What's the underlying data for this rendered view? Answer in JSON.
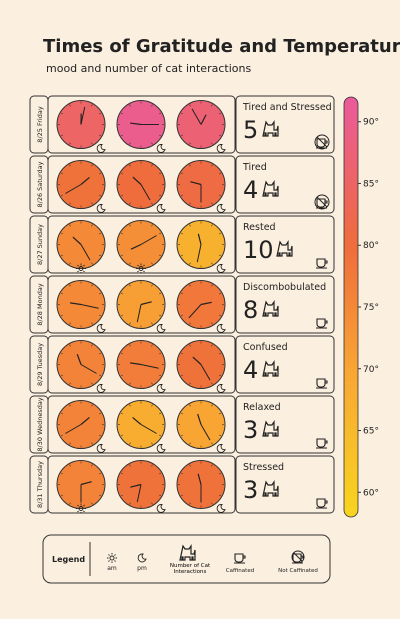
{
  "title": "Times of Gratitude and Temperature",
  "subtitle": "mood and number of cat interactions",
  "rows": [
    {
      "date": "8/25 Friday",
      "mood": "Tired and Stressed",
      "cats": 5,
      "caffeinated": false,
      "clocks": [
        {
          "hour": 12,
          "minute": 2,
          "period": "pm",
          "temp": 85
        },
        {
          "hour": 9,
          "minute": 15,
          "period": "pm",
          "temp": 90
        },
        {
          "hour": 12,
          "minute": 55,
          "period": "pm",
          "temp": 87
        }
      ]
    },
    {
      "date": "8/26 Saturday",
      "mood": "Tired",
      "cats": 4,
      "caffeinated": false,
      "clocks": [
        {
          "hour": 1,
          "minute": 40,
          "period": "pm",
          "temp": 79
        },
        {
          "hour": 10,
          "minute": 25,
          "period": "pm",
          "temp": 80
        },
        {
          "hour": 9,
          "minute": 30,
          "period": "pm",
          "temp": 81
        }
      ]
    },
    {
      "date": "8/27 Sunday",
      "mood": "Rested",
      "cats": 10,
      "caffeinated": true,
      "clocks": [
        {
          "hour": 10,
          "minute": 25,
          "period": "am",
          "temp": 75
        },
        {
          "hour": 8,
          "minute": 10,
          "period": "am",
          "temp": 74
        },
        {
          "hour": 11,
          "minute": 32,
          "period": "pm",
          "temp": 67
        }
      ]
    },
    {
      "date": "8/28 Monday",
      "mood": "Discombobulated",
      "cats": 8,
      "caffeinated": true,
      "clocks": [
        {
          "hour": 9,
          "minute": 17,
          "period": "pm",
          "temp": 75
        },
        {
          "hour": 2,
          "minute": 32,
          "period": "pm",
          "temp": 71
        },
        {
          "hour": 2,
          "minute": 37,
          "period": "pm",
          "temp": 78
        }
      ]
    },
    {
      "date": "8/29 Tuesday",
      "mood": "Confused",
      "cats": 4,
      "caffeinated": true,
      "clocks": [
        {
          "hour": 11,
          "minute": 20,
          "period": "pm",
          "temp": 76
        },
        {
          "hour": 9,
          "minute": 17,
          "period": "pm",
          "temp": 77
        },
        {
          "hour": 10,
          "minute": 25,
          "period": "pm",
          "temp": 79
        }
      ]
    },
    {
      "date": "8/30 Wednesday",
      "mood": "Relaxed",
      "cats": 3,
      "caffeinated": true,
      "clocks": [
        {
          "hour": 1,
          "minute": 40,
          "period": "pm",
          "temp": 76
        },
        {
          "hour": 10,
          "minute": 20,
          "period": "pm",
          "temp": 68
        },
        {
          "hour": 11,
          "minute": 25,
          "period": "pm",
          "temp": 70
        }
      ]
    },
    {
      "date": "8/31 Thursday",
      "mood": "Stressed",
      "cats": 3,
      "caffeinated": true,
      "clocks": [
        {
          "hour": 2,
          "minute": 30,
          "period": "am",
          "temp": 76
        },
        {
          "hour": 8,
          "minute": 32,
          "period": "pm",
          "temp": 79
        },
        {
          "hour": 11,
          "minute": 30,
          "period": "pm",
          "temp": 79
        }
      ]
    }
  ],
  "scale": {
    "lim": [
      58,
      92
    ],
    "stops": [
      {
        "value": 58,
        "color": "#f8d51f"
      },
      {
        "value": 70,
        "color": "#f8a534"
      },
      {
        "value": 80,
        "color": "#ef6c3c"
      },
      {
        "value": 92,
        "color": "#ea5a9c"
      }
    ],
    "ticks": [
      {
        "value": 60,
        "label": "60°"
      },
      {
        "value": 65,
        "label": "65°"
      },
      {
        "value": 70,
        "label": "70°"
      },
      {
        "value": 75,
        "label": "75°"
      },
      {
        "value": 80,
        "label": "80°"
      },
      {
        "value": 85,
        "label": "85°"
      },
      {
        "value": 90,
        "label": "90°"
      }
    ]
  },
  "legend": {
    "title": "Legend",
    "am": "am",
    "pm": "pm",
    "cats": "Number of Cat Interactions",
    "caffeinated": "Caffinated",
    "not_caffeinated": "Not Caffinated"
  }
}
